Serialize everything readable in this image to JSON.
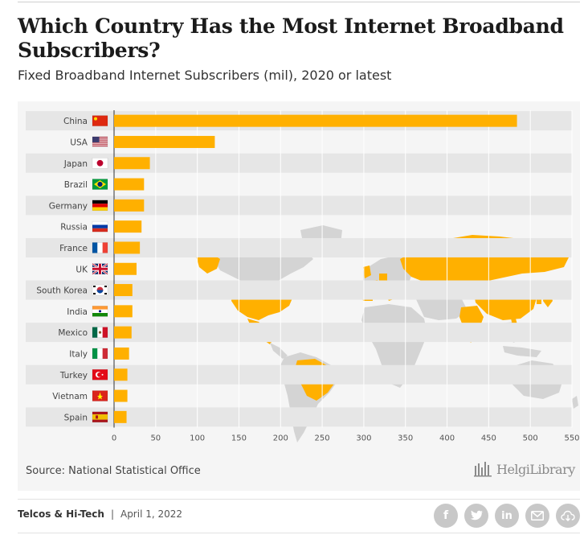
{
  "header": {
    "title": "Which Country Has the Most Internet Broadband Subscribers?",
    "subtitle": "Fixed Broadband Internet Subscribers (mil), 2020 or latest"
  },
  "footer": {
    "source": "Source: National Statistical Office",
    "logo_text": "HelgiLibrary",
    "category": "Telcos & Hi-Tech",
    "separator": "|",
    "date": "April 1, 2022",
    "social_icons": [
      "facebook-icon",
      "twitter-icon",
      "linkedin-icon",
      "email-icon",
      "download-icon"
    ]
  },
  "colors": {
    "bar": "#FFB000",
    "row_band": "#e6e6e6",
    "map_land": "#d4d4d4",
    "map_highlight": "#FFB000"
  },
  "chart_data": {
    "type": "bar",
    "orientation": "horizontal",
    "categories": [
      "China",
      "USA",
      "Japan",
      "Brazil",
      "Germany",
      "Russia",
      "France",
      "UK",
      "South Korea",
      "India",
      "Mexico",
      "Italy",
      "Turkey",
      "Vietnam",
      "Spain"
    ],
    "values": [
      484,
      121,
      43,
      36,
      36,
      33,
      31,
      27,
      22,
      22,
      21,
      18,
      16,
      16,
      15
    ],
    "xlim": [
      0,
      550
    ],
    "xticks": [
      0,
      50,
      100,
      150,
      200,
      250,
      300,
      350,
      400,
      450,
      500,
      550
    ],
    "grid": true,
    "flags": [
      "china",
      "usa",
      "japan",
      "brazil",
      "germany",
      "russia",
      "france",
      "uk",
      "south-korea",
      "india",
      "mexico",
      "italy",
      "turkey",
      "vietnam",
      "spain"
    ]
  }
}
